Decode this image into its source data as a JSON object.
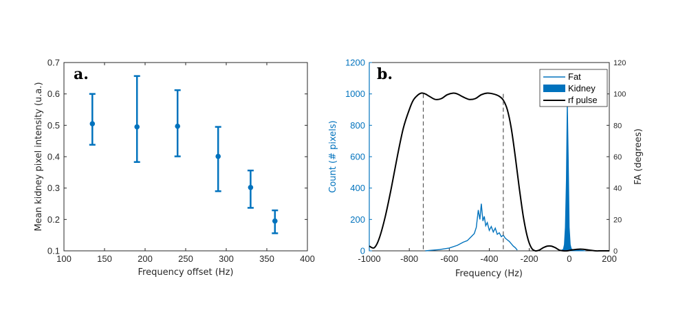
{
  "chart_data": [
    {
      "type": "scatter",
      "panel_label": "a.",
      "xlabel": "Frequency offset (Hz)",
      "ylabel": "Mean kidney pixel intensity (u.a.)",
      "xlim": [
        100,
        400
      ],
      "ylim": [
        0.1,
        0.7
      ],
      "xticks": [
        "100",
        "150",
        "200",
        "250",
        "300",
        "350",
        "400"
      ],
      "yticks": [
        "0.1",
        "0.2",
        "0.3",
        "0.4",
        "0.5",
        "0.6",
        "0.7"
      ],
      "color": "#0072BD",
      "points": [
        {
          "x": 135,
          "y": 0.505,
          "lo": 0.438,
          "hi": 0.6
        },
        {
          "x": 190,
          "y": 0.495,
          "lo": 0.383,
          "hi": 0.657
        },
        {
          "x": 240,
          "y": 0.497,
          "lo": 0.401,
          "hi": 0.612
        },
        {
          "x": 290,
          "y": 0.401,
          "lo": 0.29,
          "hi": 0.495
        },
        {
          "x": 330,
          "y": 0.302,
          "lo": 0.237,
          "hi": 0.356
        },
        {
          "x": 360,
          "y": 0.195,
          "lo": 0.156,
          "hi": 0.229
        }
      ]
    },
    {
      "type": "line",
      "panel_label": "b.",
      "xlabel": "Frequency (Hz)",
      "ylabel_left": "Count (# pixels)",
      "ylabel_right": "FA (degrees)",
      "xlim": [
        -1000,
        200
      ],
      "ylim_left": [
        0,
        1200
      ],
      "ylim_right": [
        0,
        120
      ],
      "xticks": [
        "-1000",
        "-800",
        "-600",
        "-400",
        "-200",
        "0",
        "200"
      ],
      "yticks_left": [
        "0",
        "200",
        "400",
        "600",
        "800",
        "1000",
        "1200"
      ],
      "yticks_right": [
        "0",
        "20",
        "40",
        "60",
        "80",
        "100",
        "120"
      ],
      "legend": [
        {
          "label": "Fat",
          "color": "#0072BD",
          "style": "line"
        },
        {
          "label": "Kidney",
          "color": "#0072BD",
          "style": "fill"
        },
        {
          "label": "rf pulse",
          "color": "#000000",
          "style": "line"
        }
      ],
      "dashed_markers_x": [
        -730,
        -330
      ],
      "series": [
        {
          "name": "Fat",
          "color": "#0072BD",
          "x": [
            -720,
            -650,
            -600,
            -560,
            -530,
            -510,
            -490,
            -475,
            -465,
            -455,
            -447,
            -440,
            -432,
            -425,
            -418,
            -410,
            -400,
            -390,
            -380,
            -370,
            -360,
            -350,
            -340,
            -330,
            -320,
            -310,
            -300,
            -290,
            -280,
            -270,
            -260
          ],
          "y": [
            0,
            8,
            18,
            35,
            55,
            65,
            90,
            110,
            150,
            260,
            200,
            300,
            190,
            220,
            160,
            180,
            130,
            155,
            120,
            145,
            105,
            115,
            90,
            100,
            80,
            70,
            60,
            45,
            30,
            20,
            5
          ]
        },
        {
          "name": "Kidney",
          "color": "#0072BD",
          "x": [
            -45,
            -30,
            -25,
            -20,
            -15,
            -10,
            -5,
            0,
            5,
            10,
            20,
            40,
            60,
            80
          ],
          "y": [
            0,
            10,
            40,
            150,
            450,
            1000,
            600,
            150,
            40,
            15,
            5,
            5,
            3,
            0
          ]
        },
        {
          "name": "rf pulse",
          "color": "#000000",
          "x": [
            -1000,
            -975,
            -950,
            -920,
            -890,
            -860,
            -830,
            -800,
            -780,
            -760,
            -740,
            -720,
            -700,
            -670,
            -640,
            -610,
            -580,
            -560,
            -530,
            -500,
            -470,
            -440,
            -410,
            -380,
            -350,
            -330,
            -310,
            -290,
            -270,
            -250,
            -230,
            -210,
            -190,
            -170,
            -150,
            -130,
            -110,
            -90,
            -70,
            -50,
            -30,
            -10,
            10,
            40,
            70,
            100,
            130,
            160,
            200
          ],
          "y": [
            3,
            2,
            8,
            22,
            40,
            60,
            78,
            90,
            96,
            99,
            100.5,
            100,
            98.5,
            96.5,
            97,
            99.5,
            100.5,
            100,
            98,
            96.5,
            97,
            99.5,
            100.5,
            100,
            98.5,
            96,
            90,
            78,
            60,
            40,
            22,
            9,
            2,
            0,
            0.5,
            2,
            3,
            3,
            2,
            0.5,
            0,
            0,
            0.5,
            1,
            1,
            0.5,
            0,
            0,
            0
          ]
        }
      ]
    }
  ]
}
